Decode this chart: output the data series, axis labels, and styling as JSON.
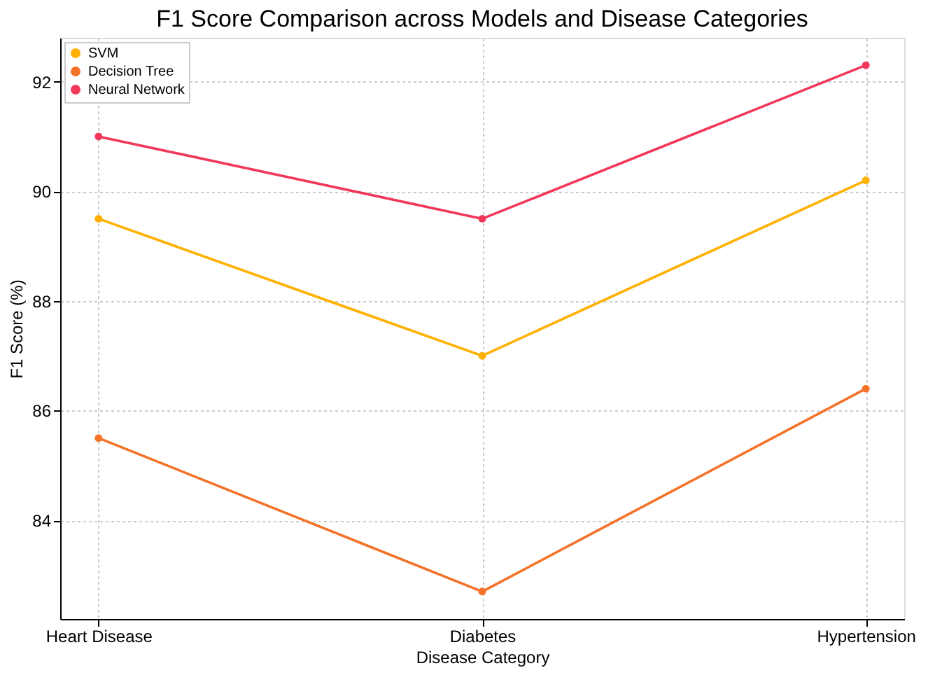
{
  "chart_data": {
    "type": "line",
    "title": "F1 Score Comparison across Models and Disease Categories",
    "xlabel": "Disease Category",
    "ylabel": "F1 Score (%)",
    "categories": [
      "Heart Disease",
      "Diabetes",
      "Hypertension"
    ],
    "series": [
      {
        "name": "SVM",
        "color": "#ffb000",
        "values": [
          89.5,
          87.0,
          90.2
        ]
      },
      {
        "name": "Decision Tree",
        "color": "#f57328",
        "values": [
          85.5,
          82.7,
          86.4
        ]
      },
      {
        "name": "Neural Network",
        "color": "#f2385a",
        "values": [
          91.0,
          89.5,
          92.3
        ]
      }
    ],
    "ylim": [
      82.2,
      92.8
    ],
    "yticks": [
      84,
      86,
      88,
      90,
      92
    ],
    "grid": true,
    "legend": "top left",
    "marker": "circle",
    "line_style": "solid"
  }
}
